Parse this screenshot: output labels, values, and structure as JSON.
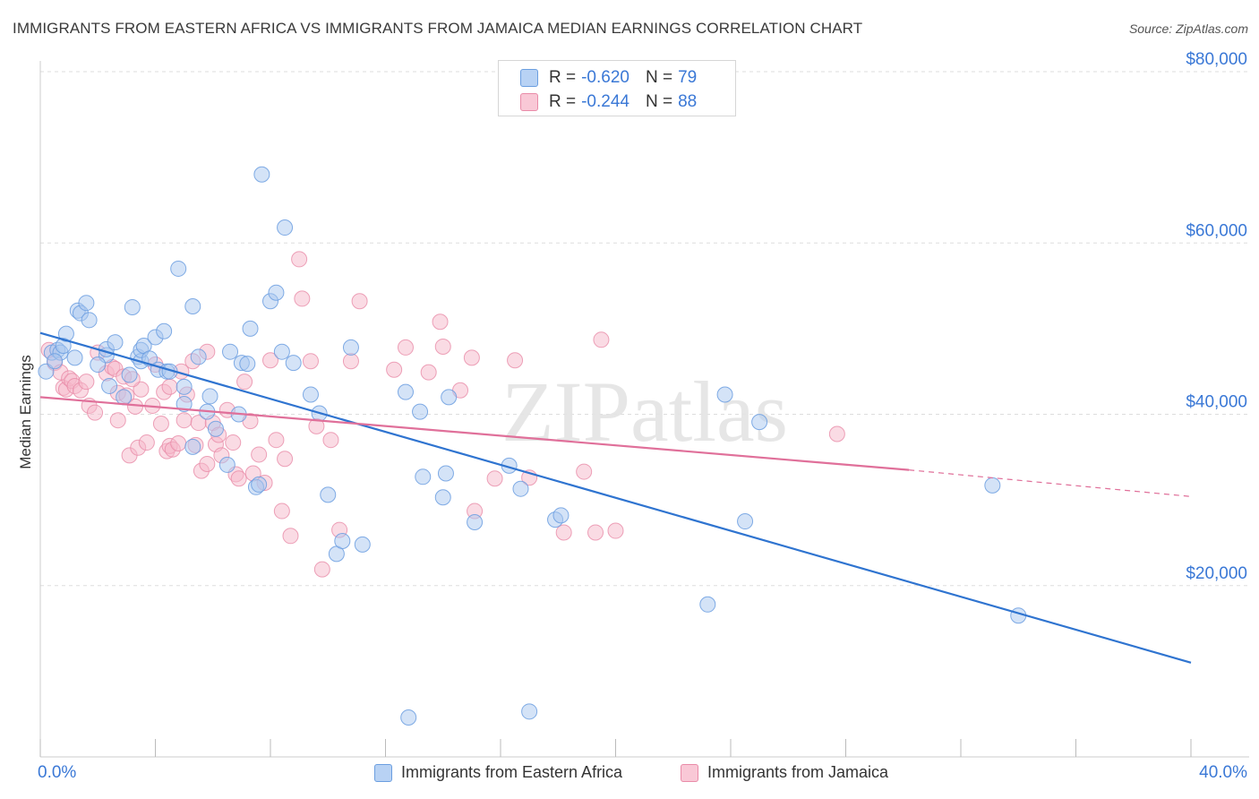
{
  "title": "IMMIGRANTS FROM EASTERN AFRICA VS IMMIGRANTS FROM JAMAICA MEDIAN EARNINGS CORRELATION CHART",
  "source": "Source: ZipAtlas.com",
  "watermark": "ZIPatlas",
  "legend_top": [
    {
      "r_label": "R = ",
      "r_value": "-0.620",
      "n_label": "N = ",
      "n_value": "79"
    },
    {
      "r_label": "R = ",
      "r_value": "-0.244",
      "n_label": "N = ",
      "n_value": "88"
    }
  ],
  "legend_bottom": [
    "Immigrants from Eastern Africa",
    "Immigrants from Jamaica"
  ],
  "colors": {
    "blue_fill": "#a9c7f0",
    "blue_stroke": "#6b9ee0",
    "blue_line": "#2f74d0",
    "pink_fill": "#f6b8ca",
    "pink_stroke": "#e98ba8",
    "pink_line": "#e0709a",
    "axis_label": "#3a78d6",
    "grid": "#dddddd"
  },
  "chart_data": {
    "type": "scatter",
    "title": "IMMIGRANTS FROM EASTERN AFRICA VS IMMIGRANTS FROM JAMAICA MEDIAN EARNINGS CORRELATION CHART",
    "xlabel": "",
    "ylabel": "Median Earnings",
    "xlim": [
      0,
      40
    ],
    "ylim": [
      0,
      80000
    ],
    "x_tick_labels": [
      "0.0%",
      "40.0%"
    ],
    "y_ticks": [
      20000,
      40000,
      60000,
      80000
    ],
    "y_tick_labels": [
      "$20,000",
      "$40,000",
      "$60,000",
      "$80,000"
    ],
    "grid": true,
    "legend_position": "top-center",
    "series": [
      {
        "name": "Immigrants from Eastern Africa",
        "r": -0.62,
        "n": 79,
        "trend": {
          "x": [
            0,
            40
          ],
          "y": [
            49500,
            11000
          ]
        },
        "points": [
          [
            0.2,
            45000
          ],
          [
            0.4,
            47200
          ],
          [
            0.6,
            47500
          ],
          [
            0.7,
            47200
          ],
          [
            0.8,
            48000
          ],
          [
            0.9,
            49400
          ],
          [
            1.3,
            52100
          ],
          [
            1.4,
            51800
          ],
          [
            1.6,
            53000
          ],
          [
            1.7,
            51000
          ],
          [
            2.3,
            46900
          ],
          [
            2.3,
            47600
          ],
          [
            2.4,
            43300
          ],
          [
            2.6,
            48400
          ],
          [
            2.9,
            42000
          ],
          [
            3.2,
            52500
          ],
          [
            3.4,
            46700
          ],
          [
            3.5,
            46200
          ],
          [
            3.5,
            47500
          ],
          [
            3.6,
            48000
          ],
          [
            3.8,
            46500
          ],
          [
            4.0,
            49000
          ],
          [
            4.1,
            45200
          ],
          [
            4.3,
            49700
          ],
          [
            4.4,
            45000
          ],
          [
            4.5,
            45000
          ],
          [
            4.8,
            57000
          ],
          [
            5.0,
            43200
          ],
          [
            5.0,
            41200
          ],
          [
            5.3,
            52600
          ],
          [
            5.3,
            36200
          ],
          [
            5.5,
            46700
          ],
          [
            5.8,
            40300
          ],
          [
            5.9,
            42100
          ],
          [
            6.1,
            38300
          ],
          [
            6.5,
            34100
          ],
          [
            6.6,
            47300
          ],
          [
            6.9,
            40000
          ],
          [
            7.0,
            46000
          ],
          [
            7.2,
            45900
          ],
          [
            7.3,
            50000
          ],
          [
            7.5,
            31500
          ],
          [
            7.6,
            31800
          ],
          [
            7.7,
            68000
          ],
          [
            8.0,
            53200
          ],
          [
            8.2,
            54200
          ],
          [
            8.4,
            47300
          ],
          [
            8.5,
            61800
          ],
          [
            8.8,
            46000
          ],
          [
            9.4,
            42300
          ],
          [
            9.7,
            40100
          ],
          [
            10.0,
            30600
          ],
          [
            10.3,
            23700
          ],
          [
            10.5,
            25200
          ],
          [
            10.8,
            47800
          ],
          [
            11.2,
            24800
          ],
          [
            12.7,
            42600
          ],
          [
            12.8,
            4600
          ],
          [
            13.2,
            40300
          ],
          [
            13.3,
            32700
          ],
          [
            14.0,
            30300
          ],
          [
            14.1,
            33100
          ],
          [
            14.2,
            42000
          ],
          [
            15.1,
            27400
          ],
          [
            16.3,
            34000
          ],
          [
            16.7,
            31300
          ],
          [
            17.0,
            5300
          ],
          [
            17.9,
            27700
          ],
          [
            18.1,
            28200
          ],
          [
            23.2,
            17800
          ],
          [
            23.8,
            42300
          ],
          [
            24.5,
            27500
          ],
          [
            25.0,
            39100
          ],
          [
            33.1,
            31700
          ],
          [
            34.0,
            16500
          ],
          [
            0.5,
            46200
          ],
          [
            1.2,
            46600
          ],
          [
            2.0,
            45800
          ],
          [
            3.1,
            44600
          ]
        ]
      },
      {
        "name": "Immigrants from Jamaica",
        "r": -0.244,
        "n": 88,
        "trend": {
          "x": [
            0,
            30.2
          ],
          "y": [
            42000,
            33500
          ]
        },
        "trend_dashed": {
          "x": [
            30.2,
            40
          ],
          "y": [
            33500,
            30400
          ]
        },
        "points": [
          [
            0.3,
            47500
          ],
          [
            0.5,
            46000
          ],
          [
            0.7,
            44900
          ],
          [
            0.8,
            43100
          ],
          [
            0.9,
            42900
          ],
          [
            1.0,
            44200
          ],
          [
            1.1,
            43900
          ],
          [
            1.2,
            43300
          ],
          [
            1.4,
            42800
          ],
          [
            1.6,
            43800
          ],
          [
            1.7,
            41000
          ],
          [
            1.9,
            40200
          ],
          [
            2.0,
            47200
          ],
          [
            2.3,
            44800
          ],
          [
            2.5,
            45500
          ],
          [
            2.6,
            45300
          ],
          [
            2.7,
            42500
          ],
          [
            2.7,
            39300
          ],
          [
            2.9,
            44400
          ],
          [
            3.0,
            42200
          ],
          [
            3.1,
            35200
          ],
          [
            3.3,
            40900
          ],
          [
            3.4,
            36100
          ],
          [
            3.5,
            42900
          ],
          [
            3.7,
            36700
          ],
          [
            3.9,
            41000
          ],
          [
            4.0,
            45800
          ],
          [
            4.2,
            38900
          ],
          [
            4.3,
            42600
          ],
          [
            4.4,
            35700
          ],
          [
            4.5,
            36300
          ],
          [
            4.6,
            35900
          ],
          [
            4.8,
            36600
          ],
          [
            4.9,
            45000
          ],
          [
            5.0,
            39300
          ],
          [
            5.1,
            42300
          ],
          [
            5.3,
            46200
          ],
          [
            5.4,
            36400
          ],
          [
            5.5,
            39000
          ],
          [
            5.6,
            33400
          ],
          [
            5.8,
            47300
          ],
          [
            5.8,
            34200
          ],
          [
            6.0,
            39000
          ],
          [
            6.1,
            36500
          ],
          [
            6.2,
            37600
          ],
          [
            6.3,
            35200
          ],
          [
            6.5,
            40500
          ],
          [
            6.7,
            36700
          ],
          [
            6.8,
            33000
          ],
          [
            6.9,
            32500
          ],
          [
            7.1,
            43800
          ],
          [
            7.3,
            39200
          ],
          [
            7.4,
            33100
          ],
          [
            7.6,
            35300
          ],
          [
            7.8,
            32000
          ],
          [
            8.0,
            46300
          ],
          [
            8.2,
            37000
          ],
          [
            8.4,
            28700
          ],
          [
            8.5,
            34800
          ],
          [
            8.7,
            25800
          ],
          [
            9.0,
            58100
          ],
          [
            9.1,
            53500
          ],
          [
            9.4,
            46200
          ],
          [
            9.6,
            38600
          ],
          [
            9.8,
            21900
          ],
          [
            10.1,
            37000
          ],
          [
            10.4,
            26500
          ],
          [
            10.8,
            46200
          ],
          [
            11.1,
            53200
          ],
          [
            12.3,
            45200
          ],
          [
            12.7,
            47800
          ],
          [
            13.5,
            44900
          ],
          [
            13.9,
            50800
          ],
          [
            14.0,
            47900
          ],
          [
            14.6,
            42800
          ],
          [
            15.0,
            46600
          ],
          [
            15.1,
            28700
          ],
          [
            15.8,
            32500
          ],
          [
            16.5,
            46300
          ],
          [
            17.0,
            32600
          ],
          [
            18.2,
            26200
          ],
          [
            18.9,
            33300
          ],
          [
            19.3,
            26200
          ],
          [
            19.5,
            48700
          ],
          [
            20.0,
            26400
          ],
          [
            27.7,
            37700
          ],
          [
            4.5,
            43200
          ],
          [
            3.2,
            44100
          ]
        ]
      }
    ]
  }
}
